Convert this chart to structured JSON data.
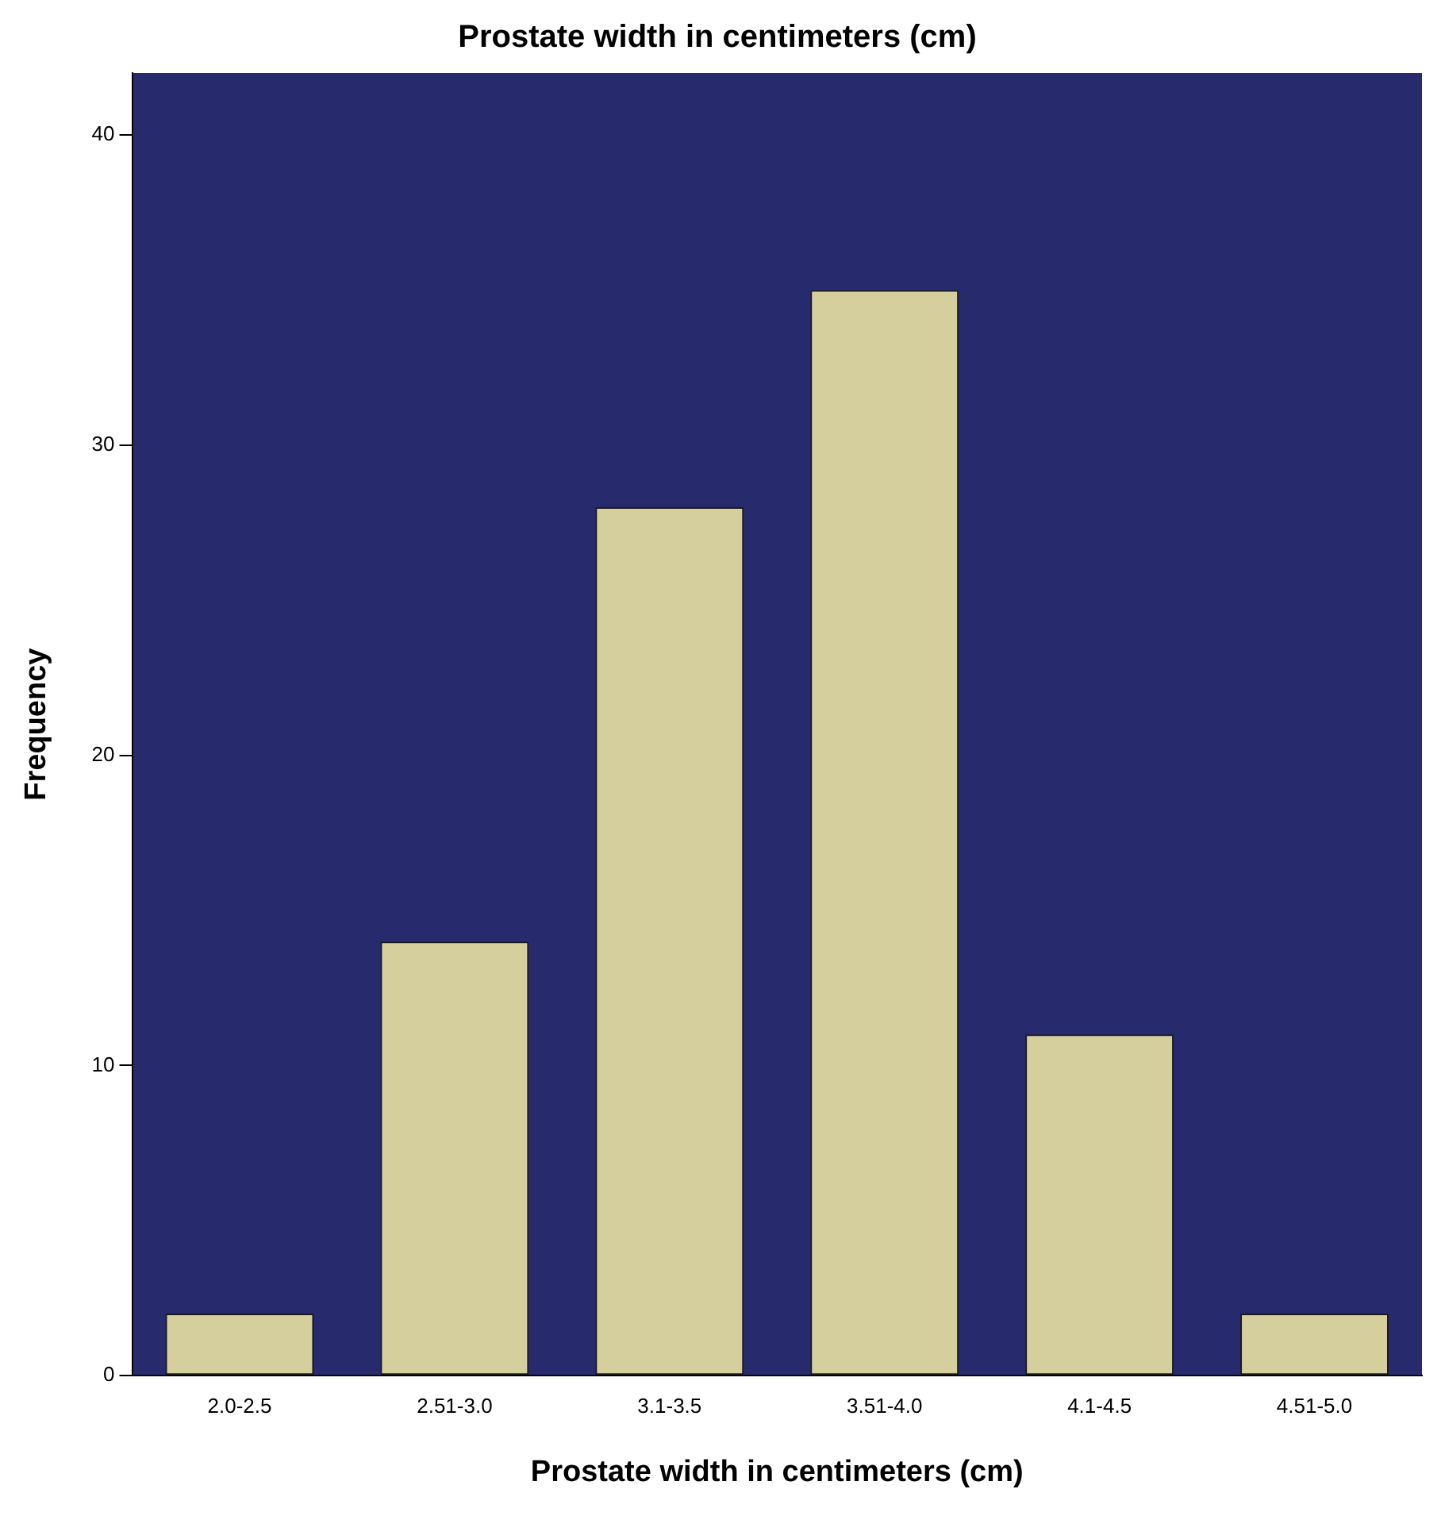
{
  "chart_data": {
    "type": "bar",
    "title": "Prostate width in centimeters (cm)",
    "xlabel": "Prostate width in centimeters (cm)",
    "ylabel": "Frequency",
    "categories": [
      "2.0-2.5",
      "2.51-3.0",
      "3.1-3.5",
      "3.51-4.0",
      "4.1-4.5",
      "4.51-5.0"
    ],
    "values": [
      2,
      14,
      28,
      35,
      11,
      2
    ],
    "color": "#d4cf9c",
    "ylim": [
      0,
      42
    ],
    "yticks": [
      0,
      10,
      20,
      30,
      40
    ],
    "grid": false,
    "legend": false
  }
}
